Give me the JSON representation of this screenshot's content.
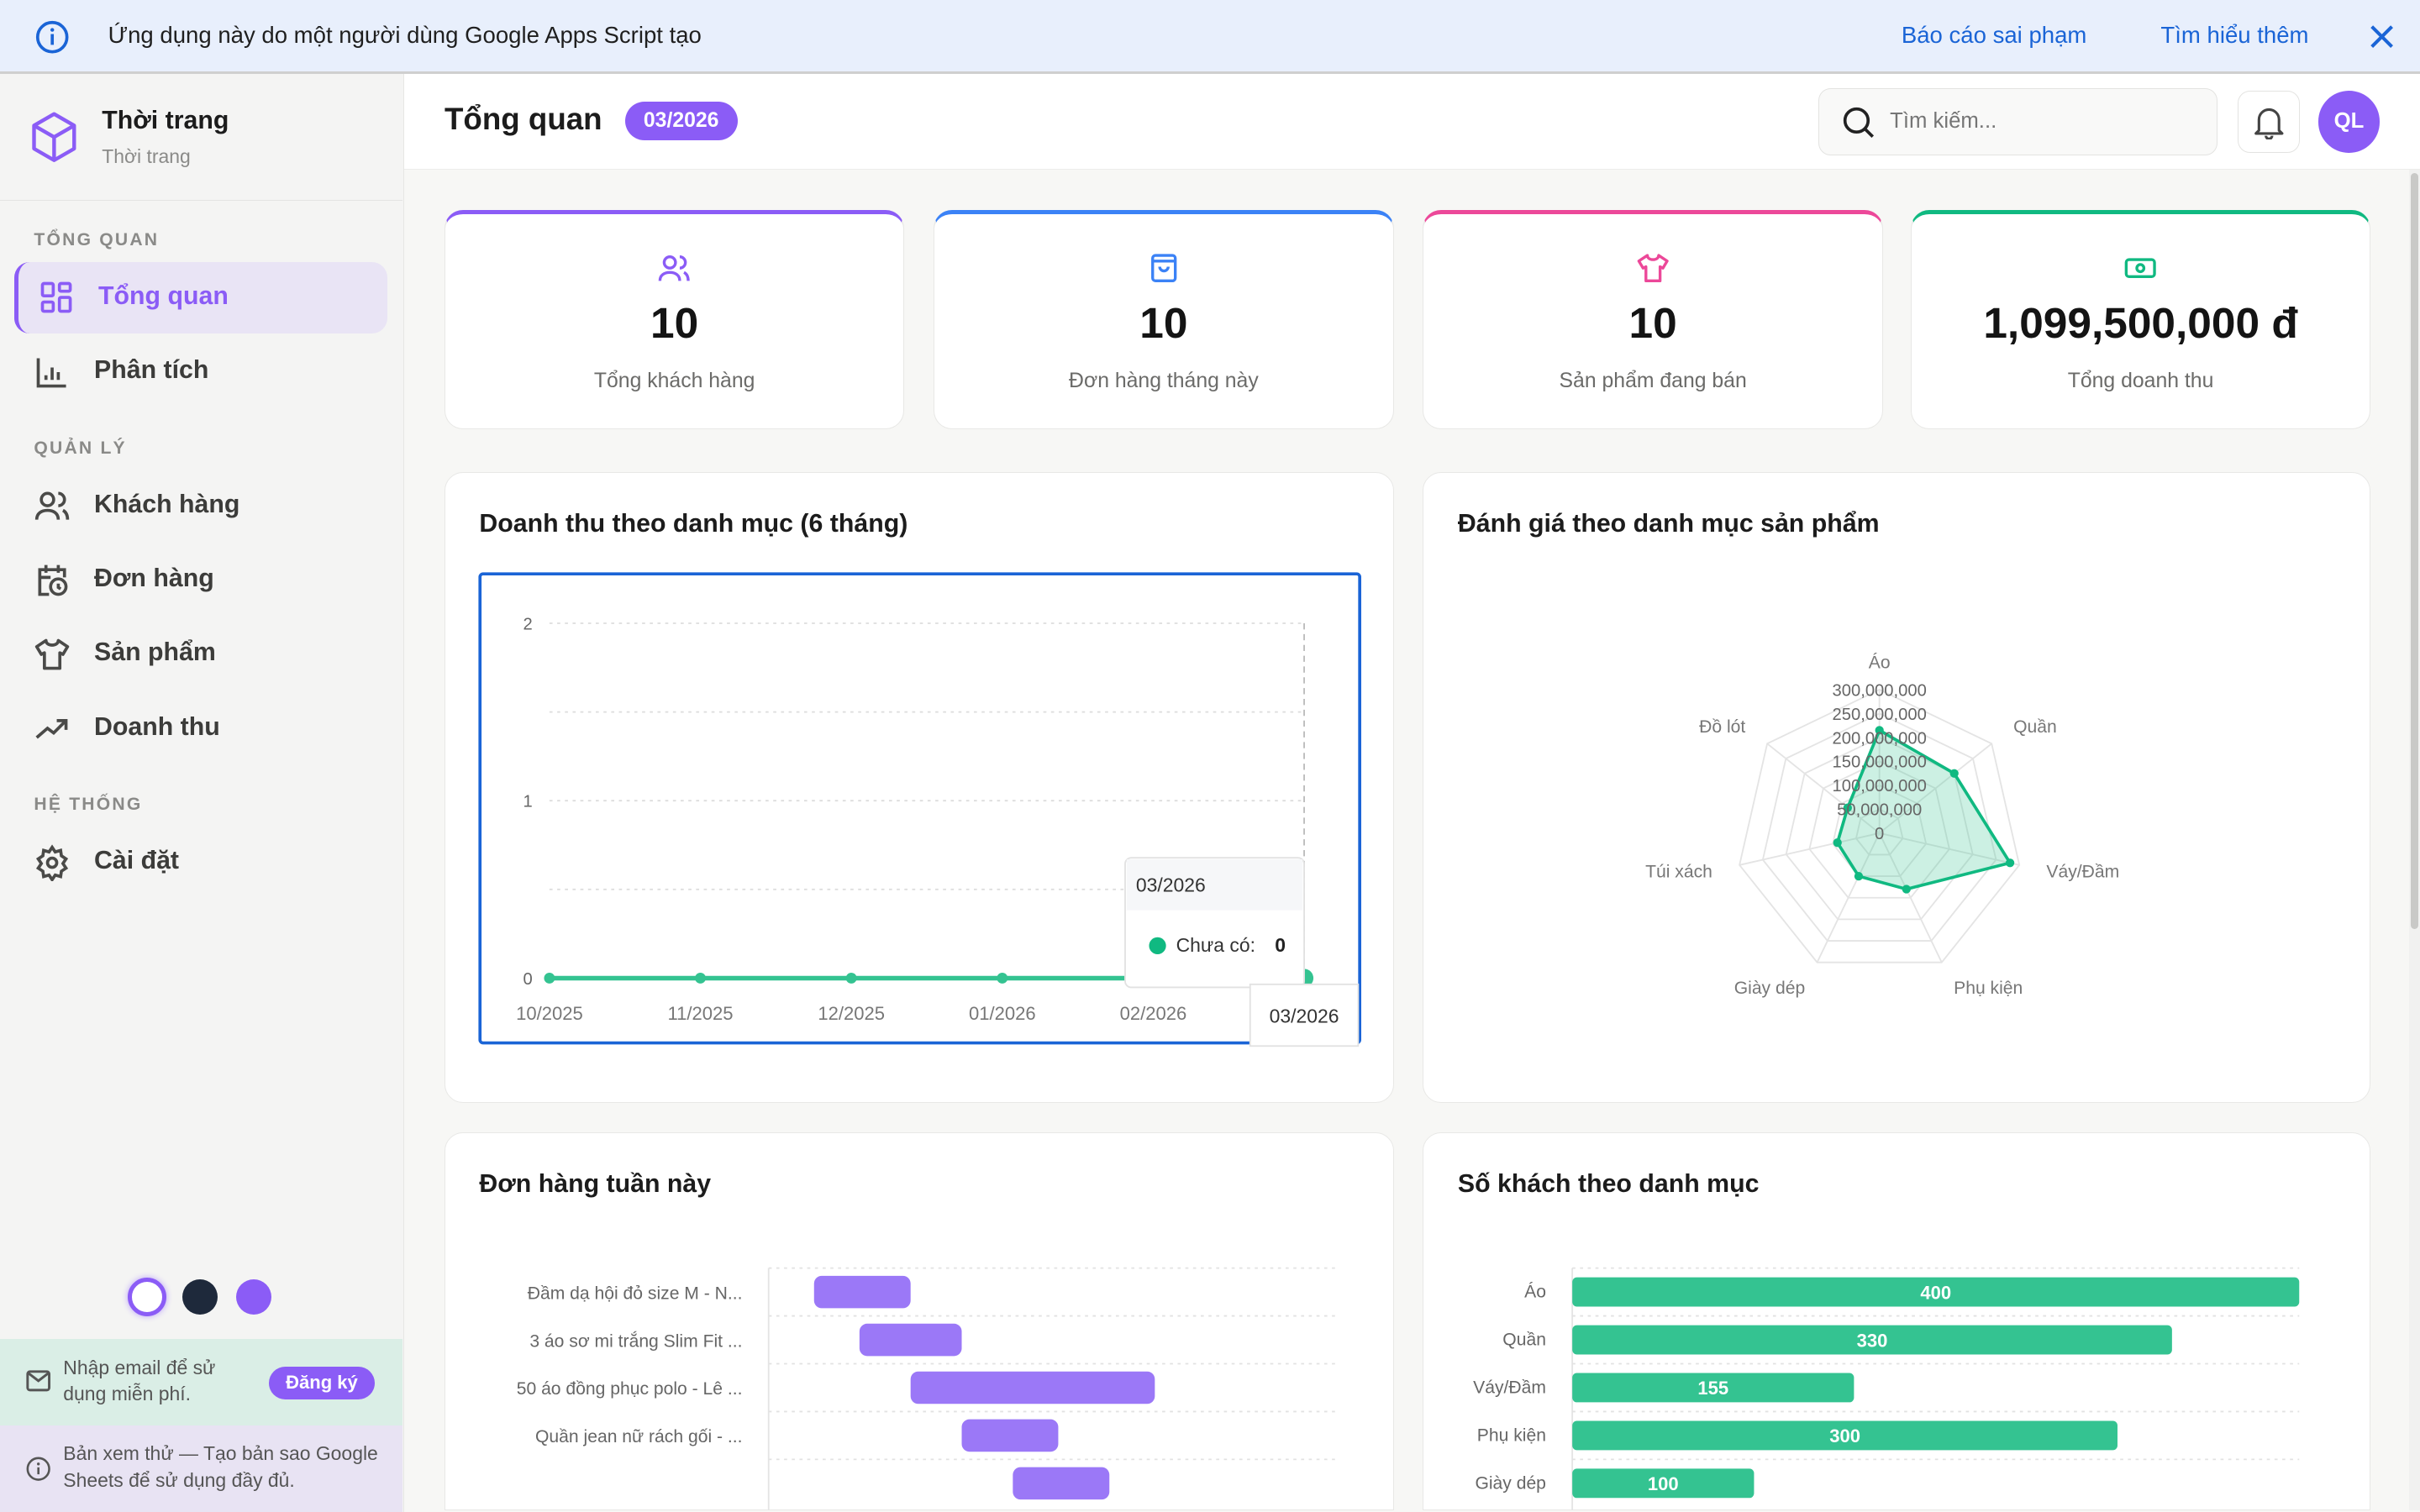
{
  "banner": {
    "message": "Ứng dụng này do một người dùng Google Apps Script tạo",
    "report_link": "Báo cáo sai phạm",
    "learn_more_link": "Tìm hiểu thêm",
    "icon": "info-icon",
    "close_icon": "close-icon"
  },
  "brand": {
    "title": "Thời trang",
    "subtitle": "Thời trang",
    "icon": "cube-icon"
  },
  "sidebar": {
    "sections": [
      {
        "label": "TỔNG QUAN",
        "items": [
          {
            "label": "Tổng quan",
            "icon": "dashboard-grid-icon",
            "active": true
          },
          {
            "label": "Phân tích",
            "icon": "bar-chart-icon"
          }
        ]
      },
      {
        "label": "QUẢN LÝ",
        "items": [
          {
            "label": "Khách hàng",
            "icon": "users-icon"
          },
          {
            "label": "Đơn hàng",
            "icon": "calendar-clock-icon"
          },
          {
            "label": "Sản phẩm",
            "icon": "shirt-icon"
          },
          {
            "label": "Doanh thu",
            "icon": "trending-up-icon"
          }
        ]
      },
      {
        "label": "HỆ THỐNG",
        "items": [
          {
            "label": "Cài đặt",
            "icon": "gear-icon"
          }
        ]
      }
    ],
    "theme_colors": [
      "#ffffff",
      "#1e293b",
      "#8b5cf6"
    ],
    "signup": {
      "text": "Nhập email để sử dụng miễn phí.",
      "button": "Đăng ký"
    },
    "preview_note": "Bản xem thử — Tạo bản sao Google Sheets để sử dụng đầy đủ."
  },
  "header": {
    "title": "Tổng quan",
    "period_badge": "03/2026",
    "search_placeholder": "Tìm kiếm...",
    "avatar_initials": "QL"
  },
  "colors": {
    "accent": "#8b5cf6",
    "blue": "#3b82f6",
    "pink": "#ec4899",
    "green": "#10b981",
    "chart_green": "#34c391",
    "bar_purple": "#9b78f7"
  },
  "stats": [
    {
      "value": "10",
      "label": "Tổng khách hàng",
      "icon": "users-icon",
      "color": "#8b5cf6"
    },
    {
      "value": "10",
      "label": "Đơn hàng tháng này",
      "icon": "shopping-bag-icon",
      "color": "#3b82f6"
    },
    {
      "value": "10",
      "label": "Sản phẩm đang bán",
      "icon": "shirt-icon",
      "color": "#ec4899"
    },
    {
      "value": "1,099,500,000 đ",
      "label": "Tổng doanh thu",
      "icon": "banknote-icon",
      "color": "#10b981"
    }
  ],
  "chart_data": [
    {
      "type": "line",
      "title": "Doanh thu theo danh mục (6 tháng)",
      "categories": [
        "10/2025",
        "11/2025",
        "12/2025",
        "01/2026",
        "02/2026",
        "03/2026"
      ],
      "series": [
        {
          "name": "Chưa có",
          "values": [
            0,
            0,
            0,
            0,
            0,
            0
          ]
        }
      ],
      "ylim": [
        0,
        2
      ],
      "yticks": [
        "0",
        "1",
        "2"
      ],
      "grid": true,
      "tooltip": {
        "title": "03/2026",
        "series": "Chưa có:",
        "value": "0"
      },
      "axis_pointer_label": "03/2026"
    },
    {
      "type": "radar",
      "title": "Đánh giá theo danh mục sản phẩm",
      "categories": [
        "Áo",
        "Quần",
        "Váy/Đầm",
        "Phụ kiện",
        "Giày dép",
        "Túi xách",
        "Đồ lót"
      ],
      "values": [
        215000000,
        200000000,
        280000000,
        130000000,
        100000000,
        90000000,
        85000000
      ],
      "rmax": 300000000,
      "ticks": [
        "0",
        "50,000,000",
        "100,000,000",
        "150,000,000",
        "200,000,000",
        "250,000,000",
        "300,000,000"
      ]
    },
    {
      "type": "bar",
      "orientation": "horizontal-range",
      "title": "Đơn hàng tuần này",
      "categories": [
        "Đầm dạ hội đỏ size M - N...",
        "3 áo sơ mi trắng Slim Fit ...",
        "50 áo đồng phục polo - Lê ...",
        "Quần jean nữ rách gối - ...",
        ""
      ],
      "ranges": [
        [
          8,
          25
        ],
        [
          16,
          34
        ],
        [
          25,
          68
        ],
        [
          34,
          51
        ],
        [
          43,
          60
        ]
      ],
      "xlim": [
        0,
        100
      ]
    },
    {
      "type": "bar",
      "orientation": "horizontal",
      "title": "Số khách theo danh mục",
      "categories": [
        "Áo",
        "Quần",
        "Váy/Đầm",
        "Phụ kiện",
        "Giày dép"
      ],
      "values": [
        400,
        330,
        155,
        300,
        100
      ],
      "xlim": [
        0,
        400
      ]
    }
  ]
}
